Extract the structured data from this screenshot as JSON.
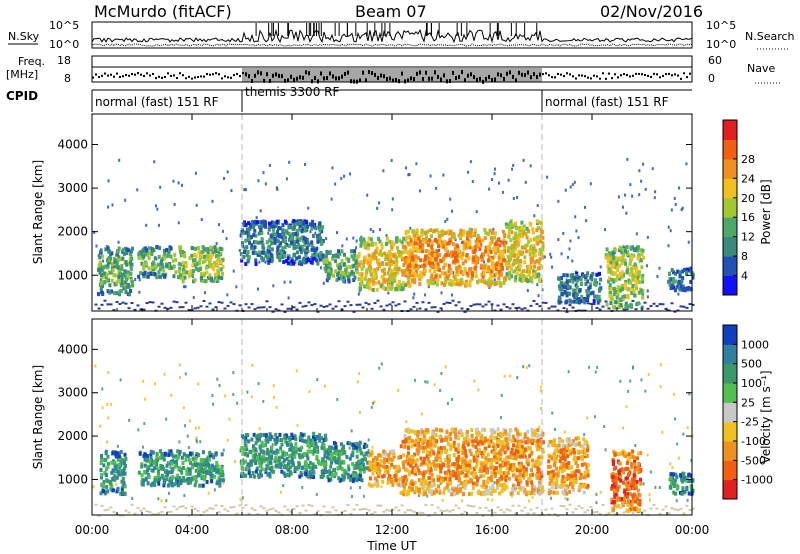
{
  "header": {
    "station": "McMurdo (fitACF)",
    "beam": "Beam 07",
    "date": "02/Nov/2016"
  },
  "strips": {
    "nsky_label": "N.Sky",
    "nsearch_label": "N.Search",
    "nsky_ticks": [
      "10^5",
      "10^0"
    ],
    "nsearch_ticks": [
      "10^5",
      "10^0"
    ],
    "freq_label_line1": "Freq.",
    "freq_label_line2": "[MHz]",
    "freq_ticks": [
      "18",
      "8"
    ],
    "nave_label": "Nave",
    "nave_ticks": [
      "60",
      "0"
    ],
    "cpid_label": "CPID",
    "cpid_segments": [
      "normal (fast) 151 RF",
      "themis 3300 RF",
      "normal (fast) 151 RF"
    ]
  },
  "chart_data": [
    {
      "type": "heatmap",
      "name": "power",
      "ylabel": "Slant Range [km]",
      "yticks": [
        1000,
        2000,
        3000,
        4000
      ],
      "ylim": [
        180,
        4700
      ],
      "xlim": [
        0,
        24
      ],
      "colorbar_label": "Power [dB]",
      "colorbar_ticks": [
        "4",
        "8",
        "12",
        "16",
        "20",
        "24",
        "28"
      ],
      "colorbar_colors": [
        "#1010ff",
        "#2050b8",
        "#3a8a7a",
        "#4da86a",
        "#a0c830",
        "#f0c020",
        "#f09020",
        "#f06010",
        "#e02020"
      ],
      "features": [
        {
          "t0": 0.2,
          "t1": 1.6,
          "r0": 600,
          "r1": 1700,
          "level": 3
        },
        {
          "t0": 1.8,
          "t1": 3.3,
          "r0": 1000,
          "r1": 1700,
          "level": 3
        },
        {
          "t0": 3.4,
          "t1": 5.2,
          "r0": 900,
          "r1": 1700,
          "level": 4
        },
        {
          "t0": 5.9,
          "t1": 9.2,
          "r0": 1300,
          "r1": 2300,
          "level": 2
        },
        {
          "t0": 9.2,
          "t1": 10.6,
          "r0": 900,
          "r1": 1600,
          "level": 3
        },
        {
          "t0": 10.6,
          "t1": 12.5,
          "r0": 700,
          "r1": 1900,
          "level": 5
        },
        {
          "t0": 12.5,
          "t1": 16.5,
          "r0": 800,
          "r1": 2100,
          "level": 6
        },
        {
          "t0": 16.5,
          "t1": 18.0,
          "r0": 900,
          "r1": 2300,
          "level": 5
        },
        {
          "t0": 18.6,
          "t1": 20.3,
          "r0": 400,
          "r1": 1100,
          "level": 2
        },
        {
          "t0": 20.5,
          "t1": 22.0,
          "r0": 300,
          "r1": 1700,
          "level": 4
        },
        {
          "t0": 23.0,
          "t1": 24.0,
          "r0": 700,
          "r1": 1200,
          "level": 2
        }
      ]
    },
    {
      "type": "heatmap",
      "name": "velocity",
      "ylabel": "Slant Range [km]",
      "xlabel": "Time UT",
      "xticks": [
        "00:00",
        "04:00",
        "08:00",
        "12:00",
        "16:00",
        "20:00",
        "00:00"
      ],
      "yticks": [
        1000,
        2000,
        3000,
        4000
      ],
      "ylim": [
        180,
        4700
      ],
      "xlim": [
        0,
        24
      ],
      "colorbar_label": "Velocity [m s⁻¹]",
      "colorbar_ticks": [
        "1000",
        "500",
        "100",
        "25",
        "-25",
        "-100",
        "-500",
        "-1000"
      ],
      "colorbar_colors": [
        "#1040c0",
        "#3080a0",
        "#3a9a6a",
        "#50c050",
        "#c8c8c8",
        "#f0c020",
        "#f09020",
        "#f06010",
        "#e02020"
      ],
      "features": [
        {
          "t0": 0.3,
          "t1": 1.3,
          "r0": 700,
          "r1": 1700,
          "level": 2
        },
        {
          "t0": 1.8,
          "t1": 5.2,
          "r0": 900,
          "r1": 1700,
          "level": 2
        },
        {
          "t0": 5.9,
          "t1": 9.4,
          "r0": 1100,
          "r1": 2100,
          "level": 2
        },
        {
          "t0": 9.4,
          "t1": 11.0,
          "r0": 1000,
          "r1": 1900,
          "level": 2
        },
        {
          "t0": 11.0,
          "t1": 12.3,
          "r0": 900,
          "r1": 1700,
          "level": 6
        },
        {
          "t0": 12.3,
          "t1": 18.0,
          "r0": 700,
          "r1": 2200,
          "level": 6
        },
        {
          "t0": 18.2,
          "t1": 19.8,
          "r0": 700,
          "r1": 2000,
          "level": 6
        },
        {
          "t0": 20.7,
          "t1": 21.9,
          "r0": 300,
          "r1": 1700,
          "level": 7
        },
        {
          "t0": 23.0,
          "t1": 24.0,
          "r0": 700,
          "r1": 1200,
          "level": 2
        }
      ]
    }
  ]
}
